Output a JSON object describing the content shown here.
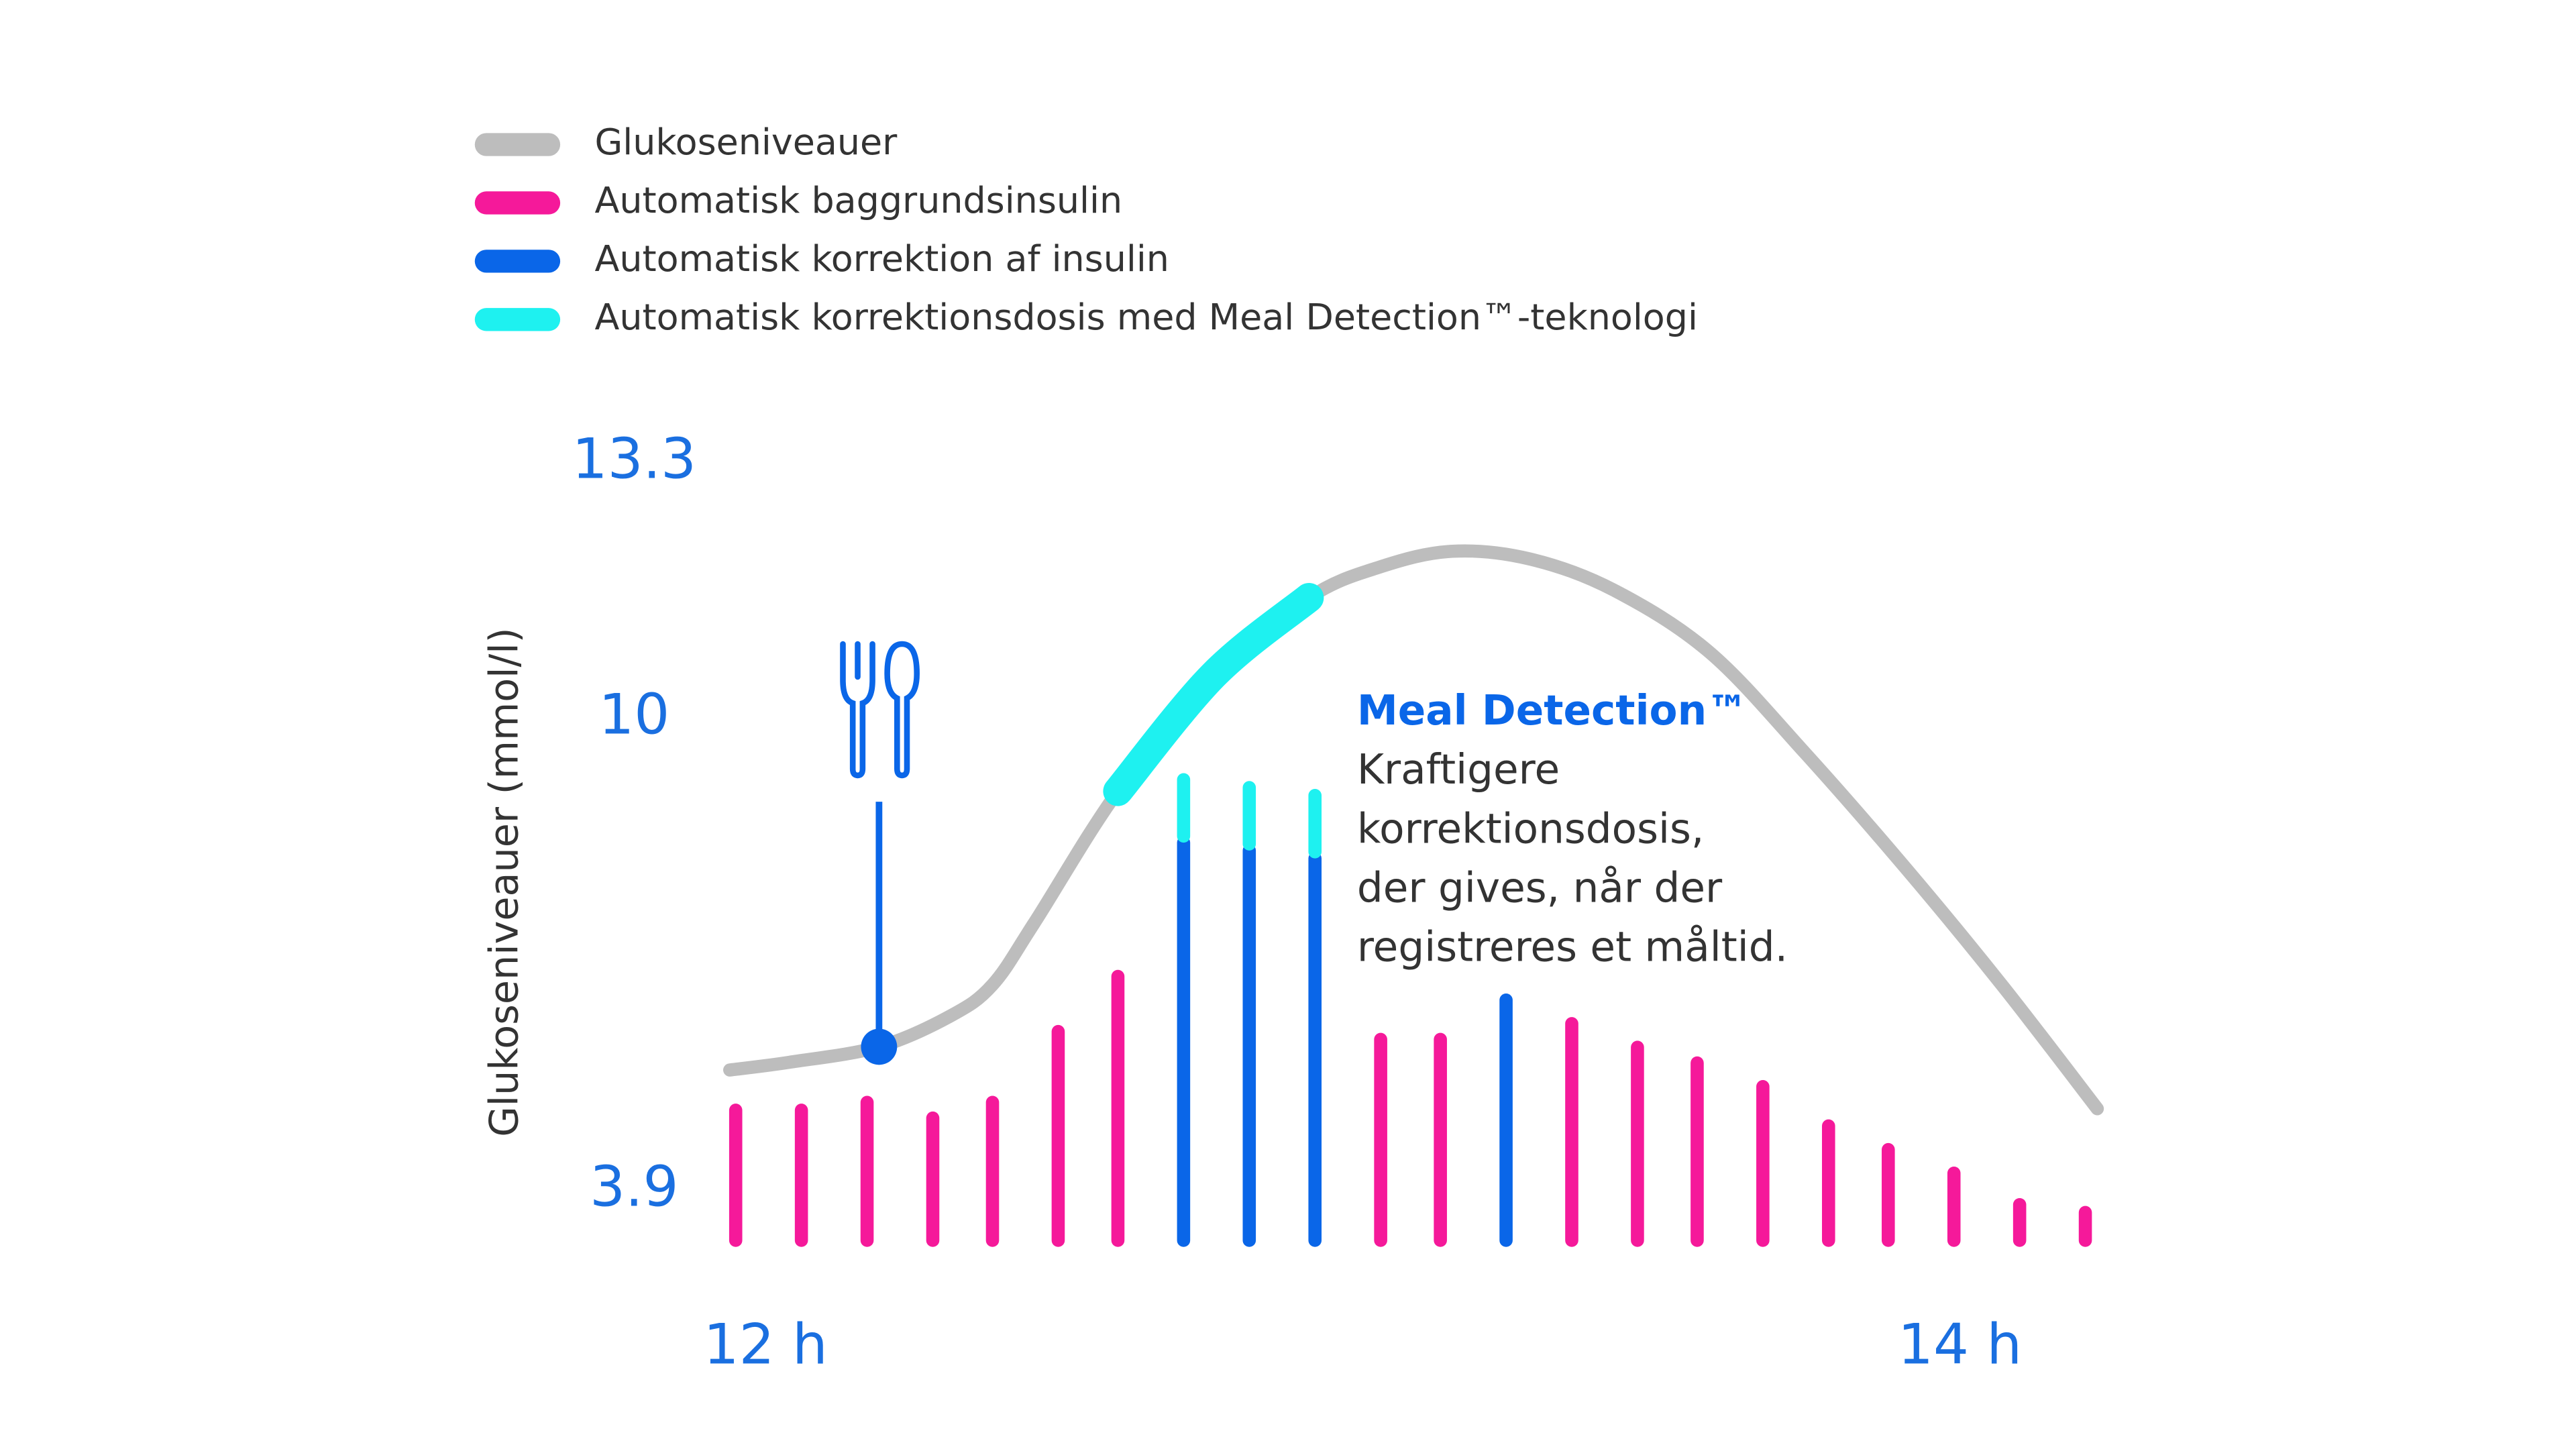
{
  "chart_data": {
    "type": "combo",
    "y_axis_label": "Glukoseniveauer (mmol/l)",
    "xlim": [
      11.9,
      14.3
    ],
    "xticks": [
      {
        "value": 12,
        "label": "12 h"
      },
      {
        "value": 14,
        "label": "14 h"
      }
    ],
    "ylim": [
      3.9,
      13.3
    ],
    "yticks": [
      3.9,
      10,
      13.3
    ],
    "y2lim": [
      0,
      10
    ],
    "series": [
      {
        "name": "Glukoseniveauer",
        "type": "line",
        "color": "#bdbdbd",
        "x": [
          11.94,
          12.04,
          12.19,
          12.31,
          12.38,
          12.45,
          12.59,
          12.75,
          12.91,
          13.03,
          13.15,
          13.28,
          13.42,
          13.58,
          13.74,
          13.91,
          14.07,
          14.23
        ],
        "values": [
          5.4,
          5.5,
          5.7,
          6.1,
          6.5,
          7.3,
          9.0,
          10.5,
          11.5,
          11.9,
          12.1,
          12.0,
          11.6,
          10.8,
          9.5,
          8.0,
          6.5,
          4.9
        ]
      },
      {
        "name": "Automatisk baggrundsinsulin",
        "type": "bar",
        "axis": "y2",
        "color": "#f5199a",
        "x": [
          11.95,
          12.06,
          12.17,
          12.28,
          12.38,
          12.49,
          12.59,
          12.7,
          12.81,
          12.92,
          13.03,
          13.13,
          13.24,
          13.35,
          13.46,
          13.56,
          13.67,
          13.78,
          13.88,
          13.99,
          14.1,
          14.21
        ],
        "values": [
          1.8,
          1.8,
          1.9,
          1.7,
          1.9,
          2.8,
          3.5,
          null,
          null,
          null,
          2.7,
          2.7,
          null,
          2.9,
          2.6,
          2.4,
          2.1,
          1.6,
          1.3,
          1.0,
          0.6,
          0.5
        ]
      },
      {
        "name": "Automatisk korrektion af insulin",
        "type": "bar",
        "axis": "y2",
        "color": "#0a66e8",
        "x": [
          11.95,
          12.06,
          12.17,
          12.28,
          12.38,
          12.49,
          12.59,
          12.7,
          12.81,
          12.92,
          13.03,
          13.13,
          13.24,
          13.35,
          13.46,
          13.56,
          13.67,
          13.78,
          13.88,
          13.99,
          14.1,
          14.21
        ],
        "values": [
          null,
          null,
          null,
          null,
          null,
          null,
          null,
          5.2,
          5.1,
          5.0,
          null,
          null,
          3.2,
          null,
          null,
          null,
          null,
          null,
          null,
          null,
          null,
          null
        ]
      },
      {
        "name": "Automatisk korrektionsdosis med Meal Detection™-teknologi",
        "type": "bar",
        "axis": "y2",
        "color": "#1ef1f0",
        "stacked": true,
        "x": [
          11.95,
          12.06,
          12.17,
          12.28,
          12.38,
          12.49,
          12.59,
          12.7,
          12.81,
          12.92,
          13.03,
          13.13,
          13.24,
          13.35,
          13.46,
          13.56,
          13.67,
          13.78,
          13.88,
          13.99,
          14.1,
          14.21
        ],
        "values": [
          null,
          null,
          null,
          null,
          null,
          null,
          null,
          0.8,
          0.8,
          0.8,
          null,
          null,
          null,
          null,
          null,
          null,
          null,
          null,
          null,
          null,
          null,
          null
        ]
      }
    ],
    "annotation": {
      "title": "Meal Detection™",
      "lines": [
        "Kraftigere",
        "korrektionsdosis,",
        "der gives, når der",
        "registreres et måltid."
      ]
    }
  }
}
